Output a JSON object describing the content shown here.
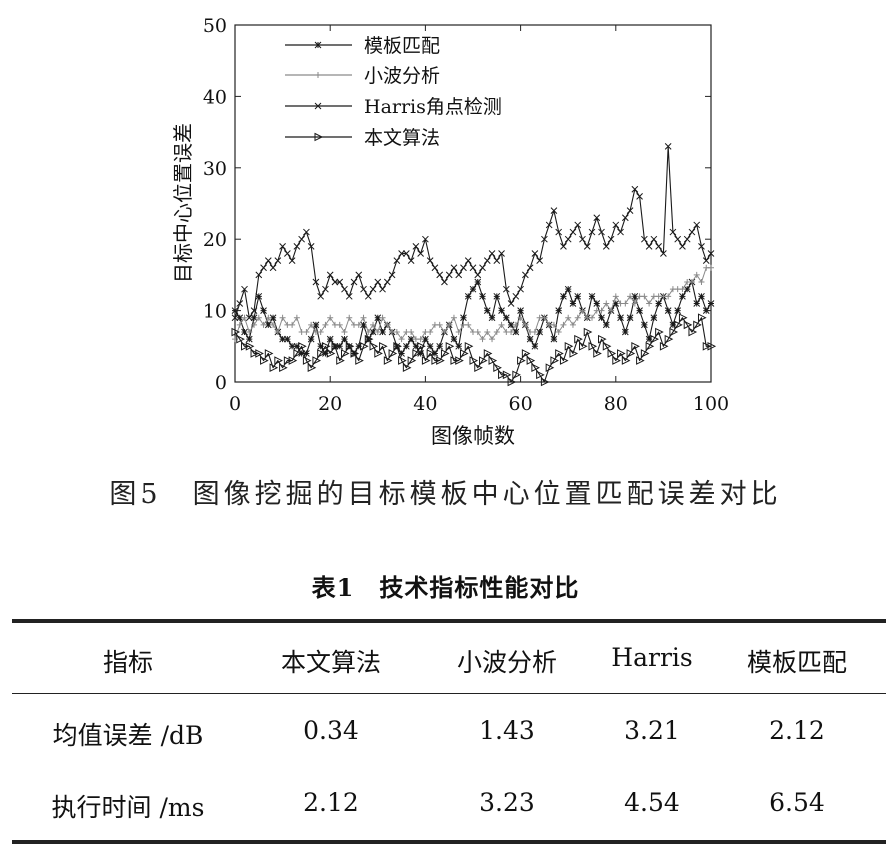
{
  "figure": {
    "caption": "图5　图像挖掘的目标模板中心位置匹配误差对比",
    "chart_data": {
      "type": "line",
      "xlabel": "图像帧数",
      "ylabel": "目标中心位置误差",
      "xlim": [
        0,
        100
      ],
      "ylim": [
        0,
        50
      ],
      "xticks": [
        0,
        20,
        40,
        60,
        80,
        100
      ],
      "yticks": [
        0,
        10,
        20,
        30,
        40,
        50
      ],
      "legend_position": "top-left",
      "grid": false,
      "x": [
        0,
        1,
        2,
        3,
        4,
        5,
        6,
        7,
        8,
        9,
        10,
        11,
        12,
        13,
        14,
        15,
        16,
        17,
        18,
        19,
        20,
        21,
        22,
        23,
        24,
        25,
        26,
        27,
        28,
        29,
        30,
        31,
        32,
        33,
        34,
        35,
        36,
        37,
        38,
        39,
        40,
        41,
        42,
        43,
        44,
        45,
        46,
        47,
        48,
        49,
        50,
        51,
        52,
        53,
        54,
        55,
        56,
        57,
        58,
        59,
        60,
        61,
        62,
        63,
        64,
        65,
        66,
        67,
        68,
        69,
        70,
        71,
        72,
        73,
        74,
        75,
        76,
        77,
        78,
        79,
        80,
        81,
        82,
        83,
        84,
        85,
        86,
        87,
        88,
        89,
        90,
        91,
        92,
        93,
        94,
        95,
        96,
        97,
        98,
        99,
        100
      ],
      "series": [
        {
          "name": "模板匹配",
          "marker": "star",
          "values": [
            10,
            9,
            7,
            6,
            9,
            12,
            10,
            8,
            9,
            7,
            6,
            6,
            5,
            5,
            4,
            4,
            6,
            8,
            5,
            4,
            6,
            5,
            5,
            6,
            5,
            4,
            5,
            8,
            6,
            7,
            9,
            7,
            8,
            7,
            5,
            4,
            5,
            6,
            5,
            4,
            6,
            5,
            4,
            5,
            7,
            8,
            6,
            5,
            9,
            12,
            13,
            14,
            12,
            10,
            9,
            12,
            10,
            9,
            8,
            7,
            10,
            8,
            6,
            5,
            7,
            9,
            8,
            6,
            10,
            12,
            13,
            11,
            12,
            10,
            9,
            12,
            11,
            9,
            8,
            10,
            11,
            9,
            7,
            9,
            12,
            10,
            8,
            6,
            9,
            11,
            12,
            10,
            8,
            10,
            12,
            13,
            14,
            11,
            12,
            10,
            11
          ]
        },
        {
          "name": "小波分析",
          "marker": "plus",
          "values": [
            6,
            8,
            9,
            7,
            8,
            9,
            8,
            9,
            8,
            7,
            9,
            8,
            8,
            9,
            7,
            7,
            8,
            7,
            7,
            8,
            9,
            8,
            8,
            7,
            9,
            8,
            8,
            9,
            7,
            8,
            7,
            9,
            8,
            7,
            7,
            6,
            7,
            7,
            6,
            6,
            7,
            7,
            8,
            8,
            7,
            8,
            9,
            7,
            8,
            8,
            7,
            7,
            6,
            7,
            6,
            7,
            8,
            7,
            7,
            8,
            9,
            8,
            7,
            7,
            9,
            9,
            8,
            8,
            7,
            8,
            9,
            8,
            9,
            10,
            9,
            9,
            10,
            10,
            11,
            10,
            12,
            11,
            11,
            12,
            11,
            12,
            12,
            11,
            12,
            12,
            12,
            12,
            13,
            13,
            13,
            14,
            14,
            15,
            14,
            16,
            16
          ]
        },
        {
          "name": "Harris角点检测",
          "marker": "x",
          "values": [
            9,
            11,
            13,
            9,
            10,
            15,
            16,
            17,
            16,
            17,
            19,
            18,
            17,
            19,
            20,
            21,
            19,
            14,
            12,
            13,
            15,
            14,
            14,
            13,
            12,
            14,
            15,
            13,
            12,
            13,
            14,
            13,
            14,
            15,
            17,
            18,
            18,
            17,
            19,
            18,
            20,
            17,
            16,
            15,
            14,
            15,
            16,
            15,
            16,
            17,
            16,
            15,
            16,
            17,
            18,
            17,
            18,
            13,
            11,
            12,
            13,
            15,
            16,
            18,
            17,
            20,
            22,
            24,
            21,
            19,
            20,
            21,
            22,
            20,
            19,
            21,
            23,
            21,
            19,
            20,
            22,
            21,
            23,
            24,
            27,
            26,
            20,
            19,
            20,
            19,
            18,
            33,
            21,
            20,
            19,
            20,
            21,
            22,
            19,
            17,
            18
          ]
        },
        {
          "name": "本文算法",
          "marker": "triangle",
          "values": [
            7,
            6,
            5,
            5,
            4,
            4,
            3,
            4,
            2,
            3,
            2,
            3,
            3,
            4,
            5,
            3,
            2,
            3,
            4,
            5,
            4,
            5,
            3,
            4,
            5,
            4,
            3,
            5,
            6,
            5,
            4,
            5,
            3,
            4,
            5,
            3,
            2,
            3,
            4,
            5,
            3,
            4,
            3,
            3,
            4,
            5,
            3,
            3,
            4,
            5,
            3,
            2,
            3,
            4,
            3,
            2,
            1,
            1,
            0,
            1,
            3,
            4,
            3,
            2,
            1,
            0,
            2,
            3,
            4,
            3,
            5,
            4,
            6,
            5,
            7,
            5,
            4,
            6,
            5,
            4,
            3,
            4,
            3,
            4,
            5,
            3,
            4,
            5,
            6,
            7,
            5,
            6,
            7,
            8,
            9,
            8,
            7,
            8,
            9,
            5,
            5
          ]
        }
      ]
    }
  },
  "table": {
    "caption": "表1　技术指标性能对比",
    "headers": [
      "指标",
      "本文算法",
      "小波分析",
      "Harris",
      "模板匹配"
    ],
    "rows": [
      [
        "均值误差 /dB",
        "0.34",
        "1.43",
        "3.21",
        "2.12"
      ],
      [
        "执行时间 /ms",
        "2.12",
        "3.23",
        "4.54",
        "6.54"
      ]
    ]
  }
}
